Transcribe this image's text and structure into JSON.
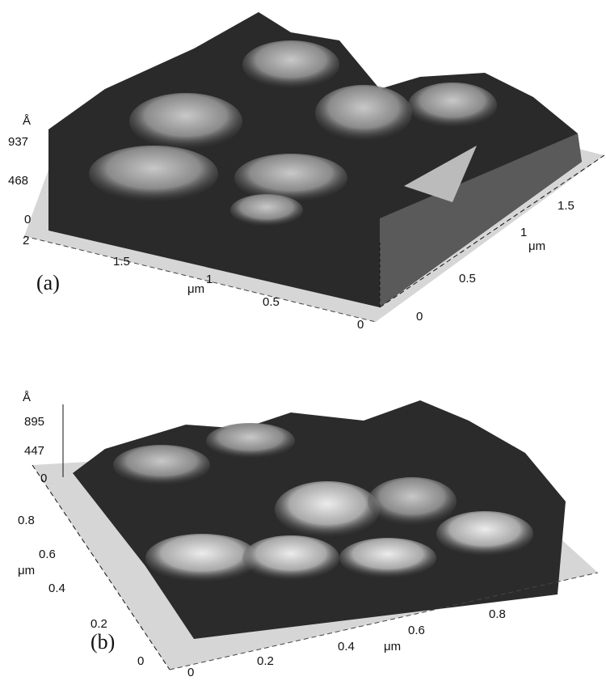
{
  "panel_a": {
    "label": "(a)",
    "z_unit": "Å",
    "z_ticks": [
      "937",
      "468",
      "0"
    ],
    "x_ticks": [
      "2",
      "1.5",
      "1",
      "0.5",
      "0"
    ],
    "x_unit": "μm",
    "y_ticks": [
      "0",
      "0.5",
      "1",
      "1.5"
    ],
    "y_unit": "μm"
  },
  "panel_b": {
    "label": "(b)",
    "z_unit": "Å",
    "z_ticks": [
      "895",
      "447",
      "0"
    ],
    "y_ticks": [
      "0.8",
      "0.6",
      "0.4",
      "0.2",
      "0"
    ],
    "y_unit": "μm",
    "x_ticks": [
      "0",
      "0.2",
      "0.4",
      "0.6",
      "0.8"
    ],
    "x_unit": "μm"
  }
}
